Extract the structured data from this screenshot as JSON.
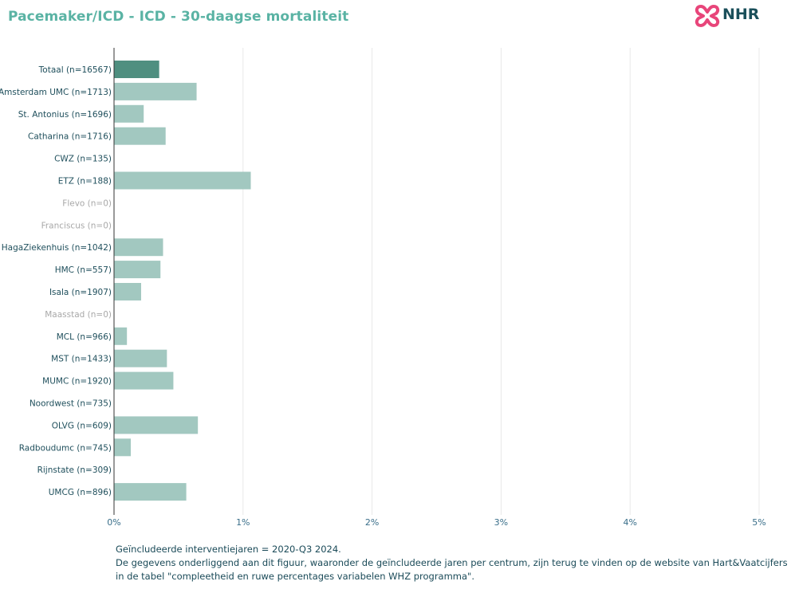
{
  "title": "Pacemaker/ICD - ICD - 30-daagse mortaliteit",
  "logo": {
    "text": "NHR",
    "icon": "heart-cross-logo-icon",
    "color": "#e8457a"
  },
  "colors": {
    "title": "#5ab3a4",
    "total_bar": "#4f8f80",
    "bar": "#a2c8c0",
    "label": "#1f4f5c",
    "label_empty": "#a8a8a8",
    "grid": "#e8e8e8",
    "axis": "#333333"
  },
  "chart_data": {
    "type": "bar",
    "orientation": "horizontal",
    "categories": [
      "Totaal (n=16567)",
      "Amsterdam UMC (n=1713)",
      "St. Antonius (n=1696)",
      "Catharina (n=1716)",
      "CWZ (n=135)",
      "ETZ (n=188)",
      "Flevo (n=0)",
      "Franciscus (n=0)",
      "HagaZiekenhuis (n=1042)",
      "HMC (n=557)",
      "Isala (n=1907)",
      "Maasstad (n=0)",
      "MCL (n=966)",
      "MST (n=1433)",
      "MUMC (n=1920)",
      "Noordwest (n=735)",
      "OLVG (n=609)",
      "Radboudumc (n=745)",
      "Rijnstate (n=309)",
      "UMCG (n=896)"
    ],
    "values": [
      0.35,
      0.64,
      0.23,
      0.4,
      0,
      1.06,
      0,
      0,
      0.38,
      0.36,
      0.21,
      0,
      0.1,
      0.41,
      0.46,
      0,
      0.65,
      0.13,
      0,
      0.56
    ],
    "empty": [
      false,
      false,
      false,
      false,
      false,
      false,
      true,
      true,
      false,
      false,
      false,
      true,
      false,
      false,
      false,
      false,
      false,
      false,
      false,
      false
    ],
    "highlight_index": 0,
    "x_ticks": [
      "0%",
      "1%",
      "2%",
      "3%",
      "4%",
      "5%"
    ],
    "xlim": [
      0,
      5
    ],
    "unit": "%",
    "grid": true
  },
  "footnote": {
    "line1": "Geïncludeerde interventiejaren = 2020-Q3 2024.",
    "line2": "De gegevens onderliggend aan dit figuur, waaronder de geïncludeerde jaren per centrum, zijn terug te vinden op de website van Hart&Vaatcijfers",
    "line3": "in de tabel \"compleetheid en ruwe percentages variabelen WHZ programma\"."
  }
}
